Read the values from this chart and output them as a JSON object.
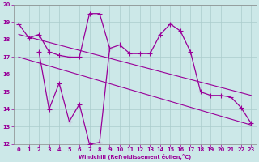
{
  "xlabel": "Windchill (Refroidissement éolien,°C)",
  "bg_color": "#cce8e8",
  "grid_color": "#aacccc",
  "line_color": "#990099",
  "xlim": [
    -0.5,
    23.5
  ],
  "ylim": [
    12,
    20
  ],
  "yticks": [
    12,
    13,
    14,
    15,
    16,
    17,
    18,
    19,
    20
  ],
  "xticks": [
    0,
    1,
    2,
    3,
    4,
    5,
    6,
    7,
    8,
    9,
    10,
    11,
    12,
    13,
    14,
    15,
    16,
    17,
    18,
    19,
    20,
    21,
    22,
    23
  ],
  "line1_x": [
    0,
    1,
    2,
    3,
    4,
    5,
    6,
    7,
    8,
    9,
    10,
    11,
    12,
    13,
    14,
    15,
    16,
    17,
    18,
    19,
    20,
    21,
    22,
    23
  ],
  "line1_y": [
    18.9,
    18.1,
    18.3,
    17.3,
    17.1,
    17.0,
    17.0,
    19.5,
    19.5,
    17.5,
    17.7,
    17.2,
    17.2,
    17.2,
    18.3,
    18.9,
    18.5,
    17.3,
    15.0,
    14.8,
    14.8,
    14.7,
    14.1,
    13.2
  ],
  "line2_x": [
    2,
    3,
    4,
    5,
    6,
    7,
    8,
    9
  ],
  "line2_y": [
    17.3,
    14.0,
    15.5,
    13.3,
    14.3,
    12.0,
    12.1,
    17.5
  ],
  "trend1_x": [
    0,
    23
  ],
  "trend1_y": [
    18.3,
    14.8
  ],
  "trend2_x": [
    0,
    23
  ],
  "trend2_y": [
    17.0,
    13.1
  ]
}
